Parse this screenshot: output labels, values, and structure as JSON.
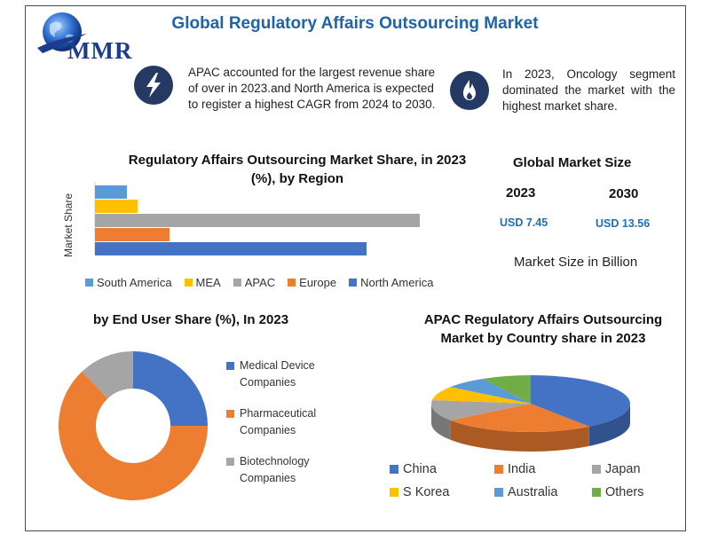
{
  "title": "Global Regulatory Affairs Outsourcing Market",
  "logo": {
    "text": "MMR"
  },
  "info": {
    "left": "APAC accounted for the largest revenue share of over in 2023.and North America is expected to register a highest CAGR from 2024 to 2030.",
    "right": "In 2023, Oncology segment dominated the market with the highest market share."
  },
  "icons": {
    "left": "lightning-icon",
    "right": "flame-icon"
  },
  "colors": {
    "south_america": "#5b9bd5",
    "mea": "#ffc000",
    "apac": "#a5a5a5",
    "europe": "#ed7d31",
    "north_america": "#4472c4",
    "others": "#70ad47",
    "title_blue": "#1f63a8",
    "usd_blue": "#1f6fb5"
  },
  "market_size": {
    "title": "Global Market Size",
    "years": [
      "2023",
      "2030"
    ],
    "values": [
      "USD 7.45",
      "USD 13.56"
    ],
    "caption": "Market Size in Billion"
  },
  "chart_data": [
    {
      "type": "bar",
      "orientation": "horizontal",
      "title": "Regulatory Affairs Outsourcing Market Share, in 2023 (%), by Region",
      "ylabel": "Market Share",
      "categories": [
        "South America",
        "MEA",
        "APAC",
        "Europe",
        "North America"
      ],
      "values": [
        6,
        8,
        61,
        14,
        51
      ],
      "colors": [
        "#5b9bd5",
        "#ffc000",
        "#a5a5a5",
        "#ed7d31",
        "#4472c4"
      ],
      "legend": [
        "South America",
        "MEA",
        "APAC",
        "Europe",
        "North America"
      ],
      "legend_position": "bottom",
      "grid": false
    },
    {
      "type": "pie",
      "variant": "donut",
      "title": "by End User Share (%), In 2023",
      "labels": [
        "Medical Device Companies",
        "Pharmaceutical Companies",
        "Biotechnology Companies"
      ],
      "values": [
        25,
        63,
        12
      ],
      "colors": [
        "#4472c4",
        "#ed7d31",
        "#a5a5a5"
      ],
      "legend_position": "right"
    },
    {
      "type": "pie",
      "variant": "3d",
      "title": "APAC Regulatory Affairs Outsourcing Market by Country share in 2023",
      "labels": [
        "China",
        "India",
        "Japan",
        "S Korea",
        "Australia",
        "Others"
      ],
      "values": [
        40,
        25,
        12,
        8,
        7,
        8
      ],
      "colors": [
        "#4472c4",
        "#ed7d31",
        "#a5a5a5",
        "#ffc000",
        "#5b9bd5",
        "#70ad47"
      ],
      "legend_position": "bottom"
    }
  ]
}
